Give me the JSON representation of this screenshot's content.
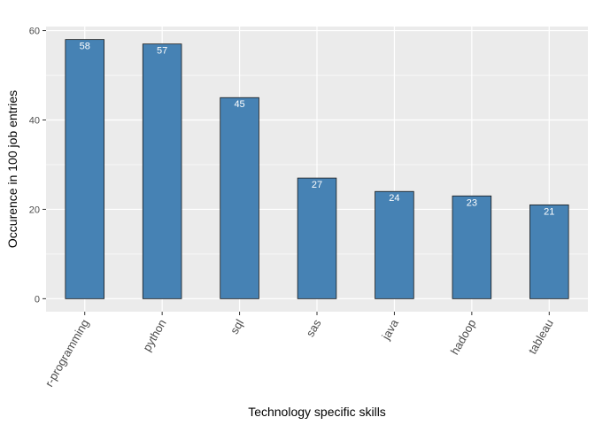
{
  "chart_data": {
    "type": "bar",
    "categories": [
      "r-programming",
      "python",
      "sql",
      "sas",
      "java",
      "hadoop",
      "tableau"
    ],
    "values": [
      58,
      57,
      45,
      27,
      24,
      23,
      21
    ],
    "xlabel": "Technology specific skills",
    "ylabel": "Occurence in 100 job entries",
    "ylim": [
      -2.9,
      60.9
    ],
    "yticks": [
      0,
      20,
      40,
      60
    ],
    "grid": true,
    "bar_color": "#4682B4",
    "bar_outline": "#1a1a1a",
    "panel_color": "#EBEBEB",
    "data_labels": true
  }
}
